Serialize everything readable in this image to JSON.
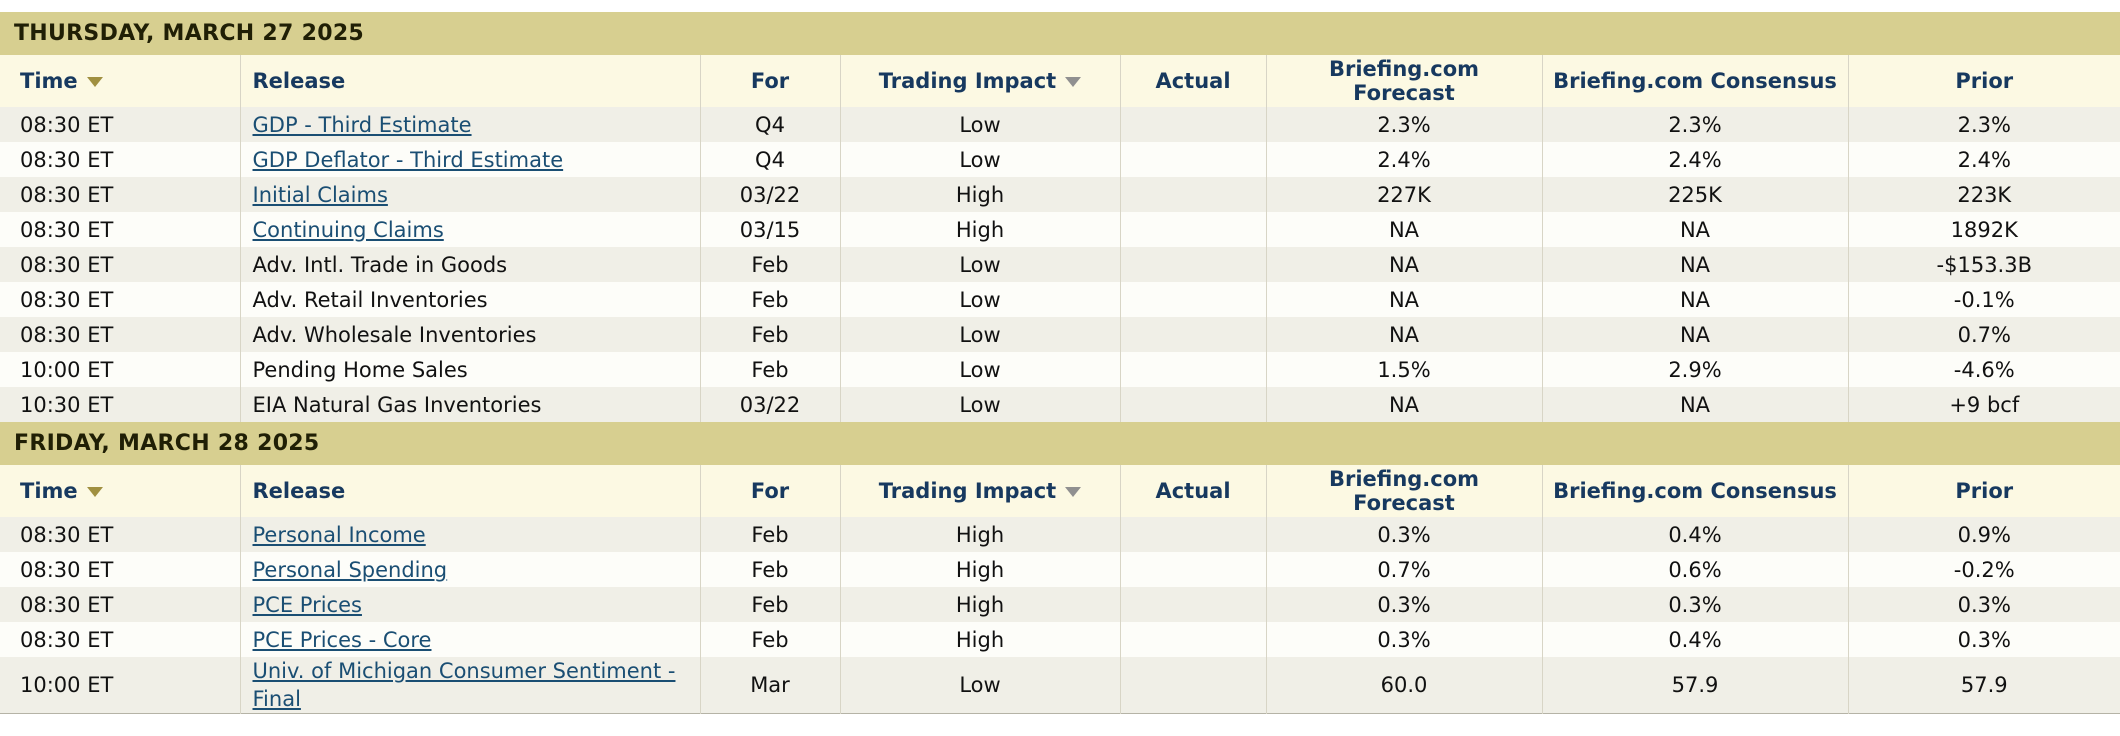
{
  "colors": {
    "day_band": "#d7cf90",
    "header_bg": "#fcf9e3",
    "header_text": "#17395f",
    "row_alt": "#f0efe7",
    "row_base": "#fdfdf9",
    "link": "#1a4e73",
    "sort_arrow_gold": "#a09040",
    "sort_arrow_gray": "#909090",
    "border": "#d8d5c6"
  },
  "table": {
    "columns": [
      {
        "id": "time",
        "label": "Time",
        "sortable": true,
        "arrow": "gold"
      },
      {
        "id": "release",
        "label": "Release",
        "sortable": false
      },
      {
        "id": "for",
        "label": "For",
        "sortable": false
      },
      {
        "id": "impact",
        "label": "Trading Impact",
        "sortable": true,
        "arrow": "gray"
      },
      {
        "id": "actual",
        "label": "Actual",
        "sortable": false
      },
      {
        "id": "forecast",
        "label": "Briefing.com Forecast",
        "sortable": false
      },
      {
        "id": "consensus",
        "label": "Briefing.com Consensus",
        "sortable": false
      },
      {
        "id": "prior",
        "label": "Prior",
        "sortable": false
      }
    ],
    "sections": [
      {
        "date_header": "THURSDAY, MARCH 27 2025",
        "rows": [
          {
            "time": "08:30 ET",
            "release": "GDP - Third Estimate",
            "link": true,
            "for": "Q4",
            "impact": "Low",
            "actual": "",
            "forecast": "2.3%",
            "consensus": "2.3%",
            "prior": "2.3%"
          },
          {
            "time": "08:30 ET",
            "release": "GDP Deflator - Third Estimate",
            "link": true,
            "for": "Q4",
            "impact": "Low",
            "actual": "",
            "forecast": "2.4%",
            "consensus": "2.4%",
            "prior": "2.4%"
          },
          {
            "time": "08:30 ET",
            "release": "Initial Claims",
            "link": true,
            "for": "03/22",
            "impact": "High",
            "actual": "",
            "forecast": "227K",
            "consensus": "225K",
            "prior": "223K"
          },
          {
            "time": "08:30 ET",
            "release": "Continuing Claims",
            "link": true,
            "for": "03/15",
            "impact": "High",
            "actual": "",
            "forecast": "NA",
            "consensus": "NA",
            "prior": "1892K"
          },
          {
            "time": "08:30 ET",
            "release": "Adv. Intl. Trade in Goods",
            "link": false,
            "for": "Feb",
            "impact": "Low",
            "actual": "",
            "forecast": "NA",
            "consensus": "NA",
            "prior": "-$153.3B"
          },
          {
            "time": "08:30 ET",
            "release": "Adv. Retail Inventories",
            "link": false,
            "for": "Feb",
            "impact": "Low",
            "actual": "",
            "forecast": "NA",
            "consensus": "NA",
            "prior": "-0.1%"
          },
          {
            "time": "08:30 ET",
            "release": "Adv. Wholesale Inventories",
            "link": false,
            "for": "Feb",
            "impact": "Low",
            "actual": "",
            "forecast": "NA",
            "consensus": "NA",
            "prior": "0.7%"
          },
          {
            "time": "10:00 ET",
            "release": "Pending Home Sales",
            "link": false,
            "for": "Feb",
            "impact": "Low",
            "actual": "",
            "forecast": "1.5%",
            "consensus": "2.9%",
            "prior": "-4.6%"
          },
          {
            "time": "10:30 ET",
            "release": "EIA Natural Gas Inventories",
            "link": false,
            "for": "03/22",
            "impact": "Low",
            "actual": "",
            "forecast": "NA",
            "consensus": "NA",
            "prior": "+9 bcf"
          }
        ]
      },
      {
        "date_header": "FRIDAY, MARCH 28 2025",
        "rows": [
          {
            "time": "08:30 ET",
            "release": "Personal Income",
            "link": true,
            "for": "Feb",
            "impact": "High",
            "actual": "",
            "forecast": "0.3%",
            "consensus": "0.4%",
            "prior": "0.9%"
          },
          {
            "time": "08:30 ET",
            "release": "Personal Spending",
            "link": true,
            "for": "Feb",
            "impact": "High",
            "actual": "",
            "forecast": "0.7%",
            "consensus": "0.6%",
            "prior": "-0.2%"
          },
          {
            "time": "08:30 ET",
            "release": "PCE Prices",
            "link": true,
            "for": "Feb",
            "impact": "High",
            "actual": "",
            "forecast": "0.3%",
            "consensus": "0.3%",
            "prior": "0.3%"
          },
          {
            "time": "08:30 ET",
            "release": "PCE Prices - Core",
            "link": true,
            "for": "Feb",
            "impact": "High",
            "actual": "",
            "forecast": "0.3%",
            "consensus": "0.4%",
            "prior": "0.3%"
          },
          {
            "time": "10:00 ET",
            "release": "Univ. of Michigan Consumer Sentiment - Final",
            "link": true,
            "for": "Mar",
            "impact": "Low",
            "actual": "",
            "forecast": "60.0",
            "consensus": "57.9",
            "prior": "57.9"
          }
        ]
      }
    ]
  }
}
